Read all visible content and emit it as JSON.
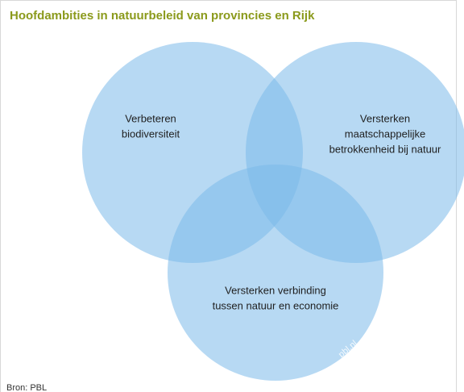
{
  "title": "Hoofdambities in natuurbeleid van provincies en Rijk",
  "circles": [
    {
      "lines": [
        "Verbeteren",
        "biodiversiteit"
      ]
    },
    {
      "lines": [
        "Versterken",
        "maatschappelijke",
        "betrokkenheid bij natuur"
      ]
    },
    {
      "lines": [
        "Versterken verbinding",
        "tussen natuur en economie"
      ]
    }
  ],
  "watermark": "pbl.nl",
  "source": "Bron: PBL"
}
